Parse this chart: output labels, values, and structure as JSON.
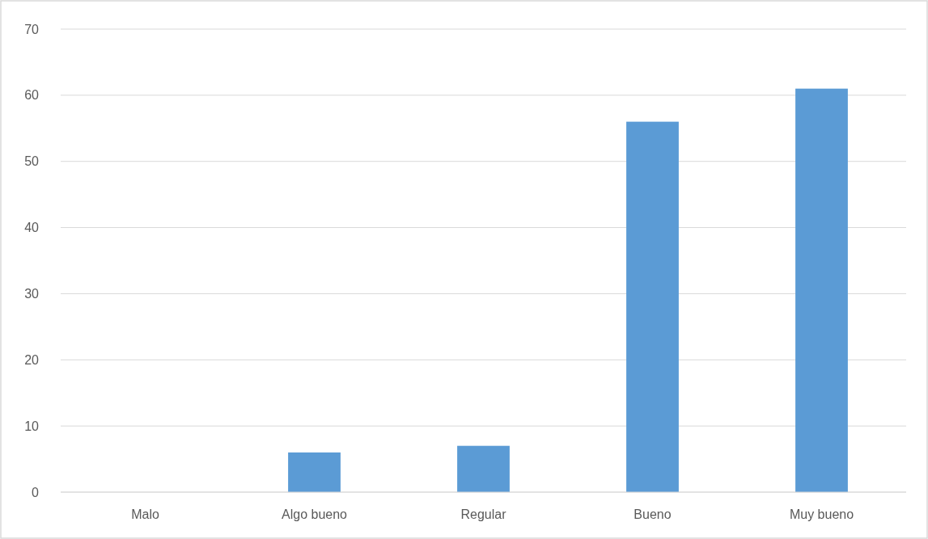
{
  "chart_data": {
    "type": "bar",
    "categories": [
      "Malo",
      "Algo bueno",
      "Regular",
      "Bueno",
      "Muy bueno"
    ],
    "values": [
      0,
      6,
      7,
      56,
      61
    ],
    "color": "#5b9bd5",
    "ylim": [
      0,
      70
    ],
    "yticks": [
      0,
      10,
      20,
      30,
      40,
      50,
      60,
      70
    ],
    "grid": "y"
  }
}
